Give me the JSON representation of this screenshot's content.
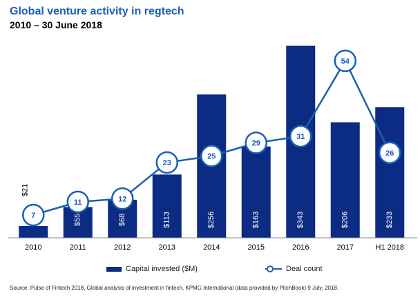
{
  "header": {
    "title": "Global venture activity in regtech",
    "subtitle": "2010 – 30 June 2018"
  },
  "legend": {
    "bars_label": "Capital invested ($M)",
    "line_label": "Deal count"
  },
  "source": "Source: Pulse of Fintech 2018, Global analysis of investment in fintech, KPMG International (data provided by PitchBook) 9 July, 2018.",
  "colors": {
    "bar": "#0c2b82",
    "line": "#1a5fb4",
    "title": "#1a5fb4"
  },
  "chart_data": {
    "type": "bar",
    "categories": [
      "2010",
      "2011",
      "2012",
      "2013",
      "2014",
      "2015",
      "2016",
      "2017",
      "H1 2018"
    ],
    "series": [
      {
        "name": "Capital invested ($M)",
        "type": "bar",
        "values": [
          21,
          55,
          68,
          113,
          256,
          163,
          343,
          206,
          233
        ],
        "labels": [
          "$21",
          "$55",
          "$68",
          "$113",
          "$256",
          "$163",
          "$343",
          "$206",
          "$233"
        ]
      },
      {
        "name": "Deal count",
        "type": "line",
        "values": [
          7,
          11,
          12,
          23,
          25,
          29,
          31,
          54,
          26
        ]
      }
    ],
    "grid": false,
    "legend_position": "bottom"
  }
}
